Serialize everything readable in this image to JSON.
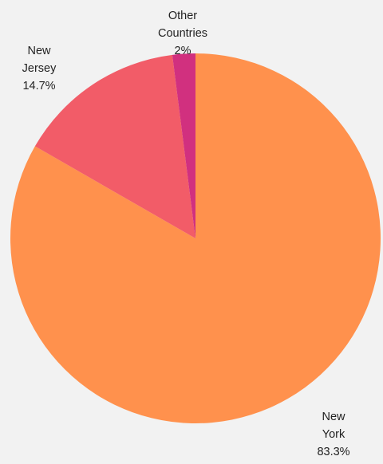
{
  "chart_data": {
    "type": "pie",
    "title": "",
    "slices": [
      {
        "label": [
          "New",
          "York"
        ],
        "pct_label": "83.3%",
        "value": 83.3,
        "color": "#ff914d"
      },
      {
        "label": [
          "New",
          "Jersey"
        ],
        "pct_label": "14.7%",
        "value": 14.7,
        "color": "#f25c68"
      },
      {
        "label": [
          "Other",
          "Countries"
        ],
        "pct_label": "2%",
        "value": 2.0,
        "color": "#d1307f"
      }
    ],
    "start": "top",
    "direction": "clockwise",
    "background": "#f2f2f2"
  }
}
